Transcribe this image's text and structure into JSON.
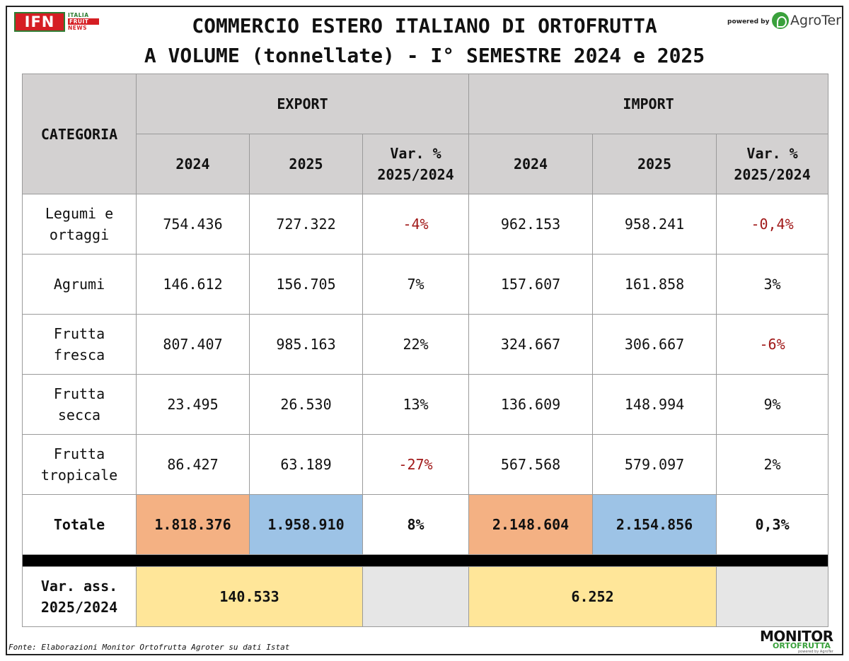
{
  "header": {
    "logo_main": "IFN",
    "logo_sub": [
      "ITALIA",
      "FRUIT",
      "NEWS"
    ],
    "title_line1": "COMMERCIO ESTERO ITALIANO DI ORTOFRUTTA",
    "title_line2": "A VOLUME (tonnellate) - I° SEMESTRE 2024 e 2025",
    "powered_by": "powered by",
    "partner": "AgroTer"
  },
  "table": {
    "category_header": "CATEGORIA",
    "export_header": "EXPORT",
    "import_header": "IMPORT",
    "col_2024": "2024",
    "col_2025": "2025",
    "col_var_l1": "Var. %",
    "col_var_l2": "2025/2024",
    "rows": [
      {
        "cat_l1": "Legumi e",
        "cat_l2": "ortaggi",
        "e24": "754.436",
        "e25": "727.322",
        "ev": "-4%",
        "i24": "962.153",
        "i25": "958.241",
        "iv": "-0,4%"
      },
      {
        "cat_l1": "Agrumi",
        "cat_l2": "",
        "e24": "146.612",
        "e25": "156.705",
        "ev": "7%",
        "i24": "157.607",
        "i25": "161.858",
        "iv": "3%"
      },
      {
        "cat_l1": "Frutta",
        "cat_l2": "fresca",
        "e24": "807.407",
        "e25": "985.163",
        "ev": "22%",
        "i24": "324.667",
        "i25": "306.667",
        "iv": "-6%"
      },
      {
        "cat_l1": "Frutta",
        "cat_l2": "secca",
        "e24": "23.495",
        "e25": "26.530",
        "ev": "13%",
        "i24": "136.609",
        "i25": "148.994",
        "iv": "9%"
      },
      {
        "cat_l1": "Frutta",
        "cat_l2": "tropicale",
        "e24": "86.427",
        "e25": "63.189",
        "ev": "-27%",
        "i24": "567.568",
        "i25": "579.097",
        "iv": "2%"
      }
    ],
    "total": {
      "label": "Totale",
      "e24": "1.818.376",
      "e25": "1.958.910",
      "ev": "8%",
      "i24": "2.148.604",
      "i25": "2.154.856",
      "iv": "0,3%"
    },
    "var_ass": {
      "label_l1": "Var. ass.",
      "label_l2": "2025/2024",
      "export": "140.533",
      "import": "6.252"
    }
  },
  "colors": {
    "header_bg": "#d3d1d1",
    "total_2024": "#f4b183",
    "total_2025": "#9dc3e6",
    "var_ass_bg": "#ffe699",
    "negative": "#a01818"
  },
  "footer": {
    "source": "Fonte: Elaborazioni Monitor Ortofrutta Agroter su dati Istat",
    "brand_l1": "MONITOR",
    "brand_l2": "ORTOFRUTTA",
    "brand_l3": "powered by AgroTer"
  },
  "chart_data": {
    "type": "table",
    "title": "COMMERCIO ESTERO ITALIANO DI ORTOFRUTTA A VOLUME (tonnellate) - I° SEMESTRE 2024 e 2025",
    "columns": [
      "CATEGORIA",
      "EXPORT 2024",
      "EXPORT 2025",
      "EXPORT Var. % 2025/2024",
      "IMPORT 2024",
      "IMPORT 2025",
      "IMPORT Var. % 2025/2024"
    ],
    "rows": [
      [
        "Legumi e ortaggi",
        754436,
        727322,
        -4,
        962153,
        958241,
        -0.4
      ],
      [
        "Agrumi",
        146612,
        156705,
        7,
        157607,
        161858,
        3
      ],
      [
        "Frutta fresca",
        807407,
        985163,
        22,
        324667,
        306667,
        -6
      ],
      [
        "Frutta secca",
        23495,
        26530,
        13,
        136609,
        148994,
        9
      ],
      [
        "Frutta tropicale",
        86427,
        63189,
        -27,
        567568,
        579097,
        2
      ],
      [
        "Totale",
        1818376,
        1958910,
        8,
        2148604,
        2154856,
        0.3
      ]
    ],
    "var_ass": {
      "export": 140533,
      "import": 6252
    }
  }
}
